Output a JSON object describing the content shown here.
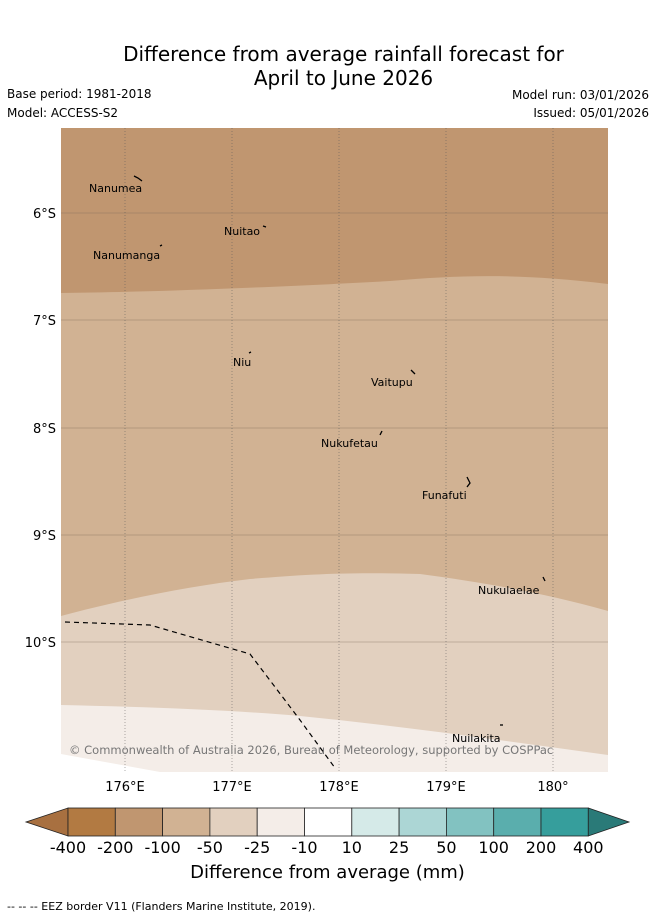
{
  "title": {
    "line1": "Difference from average rainfall forecast for",
    "line2": "April to June 2026"
  },
  "meta": {
    "base_period": "Base period: 1981-2018",
    "model": "Model: ACCESS-S2",
    "model_run": "Model run: 03/01/2026",
    "issued": "Issued: 05/01/2026"
  },
  "map": {
    "lat_labels": [
      "6°S",
      "7°S",
      "8°S",
      "9°S",
      "10°S"
    ],
    "lon_labels": [
      "176°E",
      "177°E",
      "178°E",
      "179°E",
      "180°"
    ],
    "places": [
      "Nanumea",
      "Nuitao",
      "Nanumanga",
      "Niu",
      "Vaitupu",
      "Nukufetau",
      "Funafuti",
      "Nukulaelae",
      "Nuilakita"
    ],
    "copyright": "© Commonwealth of Australia 2026, Bureau of Meteorology, supported by COSPPac",
    "colors": {
      "band_-200_-100": "#c09670",
      "band_-100_-50": "#d1b293",
      "band_-50_-25": "#e2d0bf",
      "band_-25_-10": "#f4ede8"
    }
  },
  "colorbar": {
    "labels": [
      "-400",
      "-200",
      "-100",
      "-50",
      "-25",
      "-10",
      "10",
      "25",
      "50",
      "100",
      "200",
      "400"
    ],
    "colors": [
      "#a87040",
      "#b27a42",
      "#c09670",
      "#d1b293",
      "#e2d0bf",
      "#f4ede8",
      "#ffffff",
      "#d5eae8",
      "#acd6d5",
      "#82c2c1",
      "#5aaead",
      "#369e9c",
      "#2a7a78"
    ],
    "title": "Difference from average (mm)"
  },
  "legend": {
    "eez": "-- -- -- EEZ border V11 (Flanders Marine Institute, 2019)."
  }
}
